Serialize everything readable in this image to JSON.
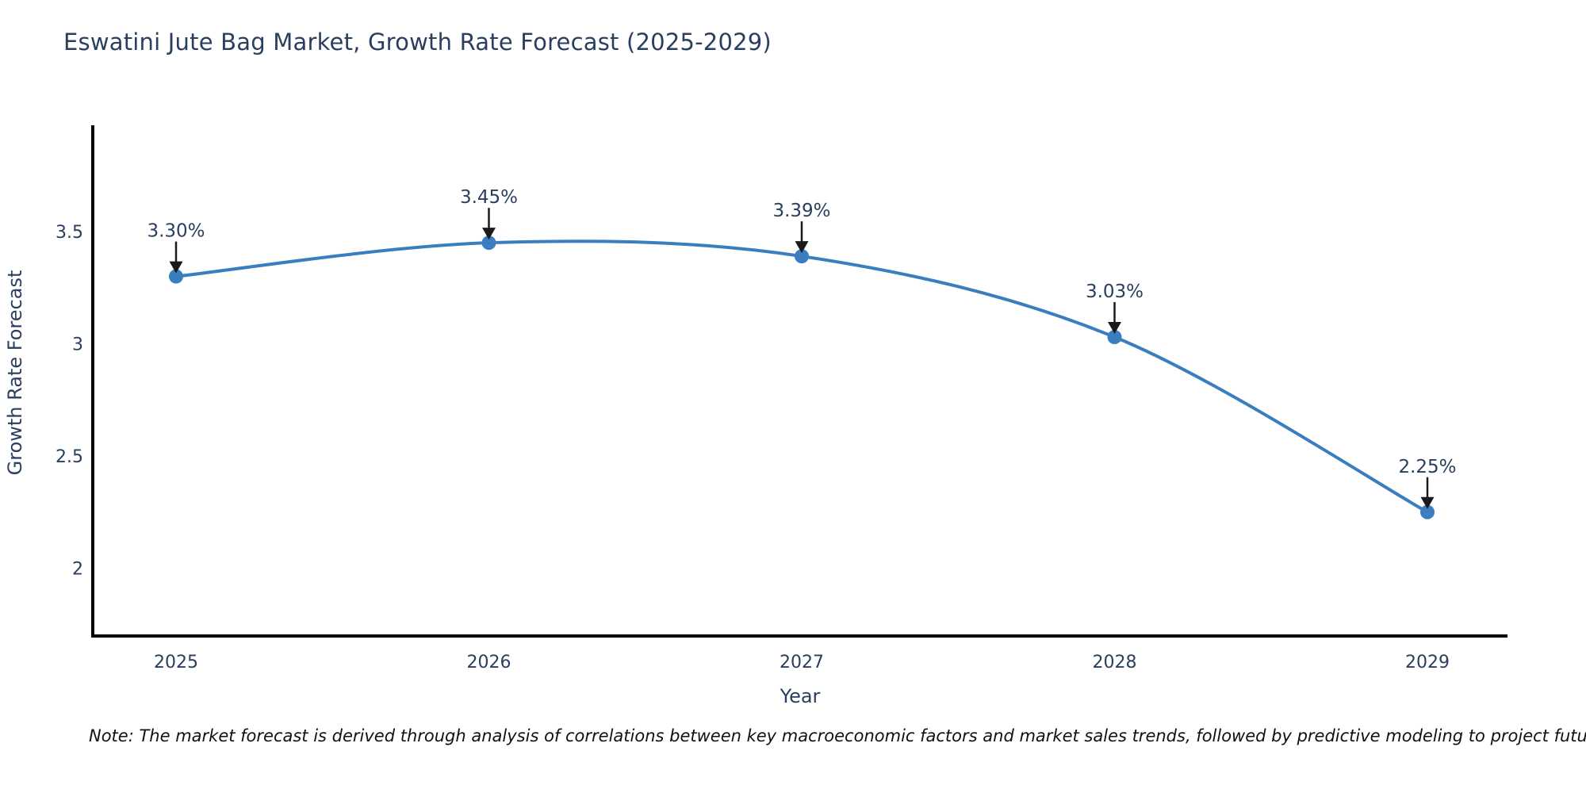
{
  "page": {
    "background_color": "#ffffff"
  },
  "chart": {
    "title": "Eswatini Jute Bag Market, Growth Rate Forecast (2025-2029)",
    "title_color": "#2a3f5f",
    "text_color": "#2a3f5f",
    "axis_line_color": "#000000",
    "series_color": "#3a7ebf",
    "arrow_color": "#1a1a1a",
    "x_axis_title": "Year",
    "y_axis_title": "Growth Rate Forecast",
    "x_tick_labels": [
      "2025",
      "2026",
      "2027",
      "2028",
      "2029"
    ],
    "y_tick_labels": [
      "3.5",
      "3",
      "2.5",
      "2"
    ],
    "y_tick_values": [
      3.5,
      3,
      2.5,
      2
    ]
  },
  "chart_data": {
    "type": "line",
    "title": "Eswatini Jute Bag Market, Growth Rate Forecast (2025-2029)",
    "xlabel": "Year",
    "ylabel": "Growth Rate Forecast",
    "x": [
      2025,
      2026,
      2027,
      2028,
      2029
    ],
    "y": [
      3.3,
      3.45,
      3.39,
      3.03,
      2.25
    ],
    "point_labels": [
      "3.30%",
      "3.45%",
      "3.39%",
      "3.03%",
      "2.25%"
    ],
    "y_unit": "percent",
    "ylim": [
      1.7,
      3.97
    ],
    "yticks": [
      3.5,
      3,
      2.5,
      2
    ],
    "grid": false,
    "legend": "none",
    "line_shape": "spline",
    "markers": true
  },
  "note": "Note: The market forecast is derived through analysis of correlations between key macroeconomic factors and market sales trends, followed by predictive modeling to project future sales"
}
